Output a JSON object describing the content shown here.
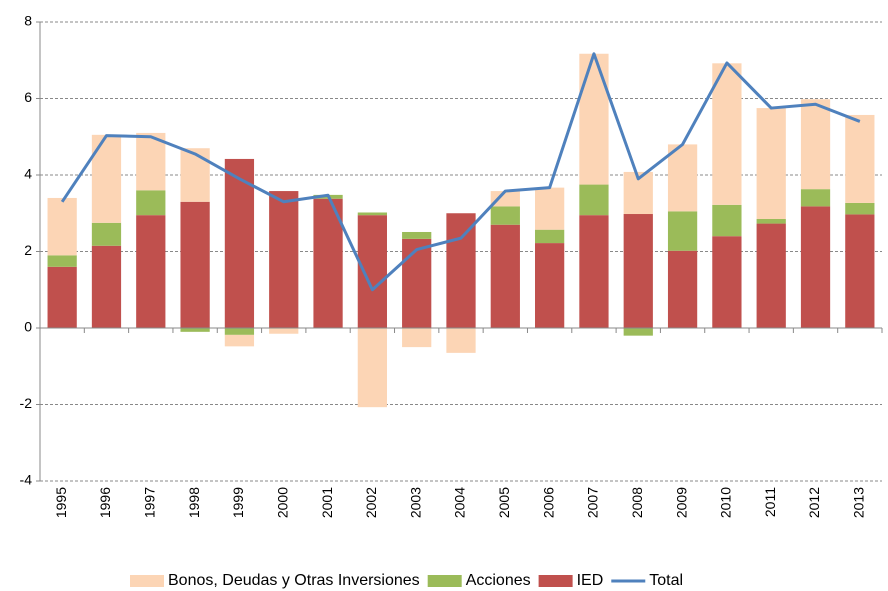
{
  "chart_data": {
    "type": "bar",
    "categories": [
      "1995",
      "1996",
      "1997",
      "1998",
      "1999",
      "2000",
      "2001",
      "2002",
      "2003",
      "2004",
      "2005",
      "2006",
      "2007",
      "2008",
      "2009",
      "2010",
      "2011",
      "2012",
      "2013"
    ],
    "series": [
      {
        "name": "Bonos, Deudas  y Otras Inversiones",
        "type": "bar",
        "color": "#fcd5b5",
        "values": [
          1.5,
          2.3,
          1.5,
          1.4,
          -0.3,
          -0.15,
          0,
          -2.07,
          -0.5,
          -0.65,
          0.4,
          1.1,
          3.42,
          1.1,
          1.75,
          3.7,
          2.9,
          2.35,
          2.3
        ]
      },
      {
        "name": "Acciones",
        "type": "bar",
        "color": "#9bbb59",
        "values": [
          0.3,
          0.6,
          0.65,
          -0.1,
          -0.18,
          0,
          0.1,
          0.07,
          0.18,
          0,
          0.48,
          0.35,
          0.8,
          -0.2,
          1.03,
          0.82,
          0.12,
          0.45,
          0.3
        ]
      },
      {
        "name": "IED",
        "type": "bar",
        "color": "#c0504d",
        "values": [
          1.6,
          2.15,
          2.95,
          3.3,
          4.42,
          3.58,
          3.38,
          2.95,
          2.33,
          3.0,
          2.7,
          2.22,
          2.95,
          2.98,
          2.02,
          2.4,
          2.73,
          3.18,
          2.97
        ]
      },
      {
        "name": "Total",
        "type": "line",
        "color": "#4f81bd",
        "values": [
          3.3,
          5.03,
          5.0,
          4.55,
          3.9,
          3.3,
          3.47,
          1.0,
          2.05,
          2.35,
          3.58,
          3.67,
          7.17,
          3.9,
          4.8,
          6.93,
          5.75,
          5.85,
          5.4
        ]
      }
    ],
    "ylim": [
      -4,
      8
    ],
    "yticks": [
      -4,
      -2,
      0,
      2,
      4,
      6,
      8
    ],
    "grid": true,
    "legend": "bottom"
  }
}
